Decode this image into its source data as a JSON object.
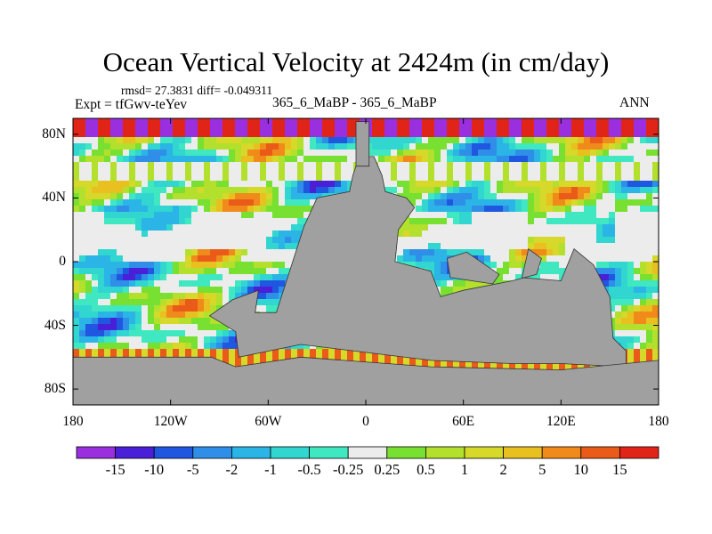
{
  "chart_data": {
    "type": "heatmap",
    "title": "Ocean Vertical Velocity at 2424m (in cm/day)",
    "stats": "rmsd= 27.3831 diff= -0.049311",
    "experiment": "Expt = tfGwv-teYev",
    "case_label": "365_6_MaBP - 365_6_MaBP",
    "season": "ANN",
    "x_tick_labels": [
      "180",
      "120W",
      "60W",
      "0",
      "60E",
      "120E",
      "180"
    ],
    "x_tick_lons": [
      -180,
      -120,
      -60,
      0,
      60,
      120,
      180
    ],
    "y_tick_labels": [
      "80N",
      "40N",
      "0",
      "40S",
      "80S"
    ],
    "y_tick_lats": [
      80,
      40,
      0,
      -40,
      -80
    ],
    "xlim": [
      -180,
      180
    ],
    "ylim": [
      -90,
      90
    ],
    "colorbar": {
      "levels": [
        "-15",
        "-10",
        "-5",
        "-2",
        "-1",
        "-0.5",
        "-0.25",
        "0.25",
        "0.5",
        "1",
        "2",
        "5",
        "10",
        "15"
      ],
      "colors": [
        "#9a2fe0",
        "#4a1fd8",
        "#1f57e0",
        "#2f8fe8",
        "#2bb4e6",
        "#30d6cf",
        "#3fe8c0",
        "#ececec",
        "#78e030",
        "#b2e02c",
        "#d6d82a",
        "#e8c020",
        "#f08a1a",
        "#ea5a18",
        "#e02418"
      ]
    },
    "land_color": "#a0a0a0"
  }
}
